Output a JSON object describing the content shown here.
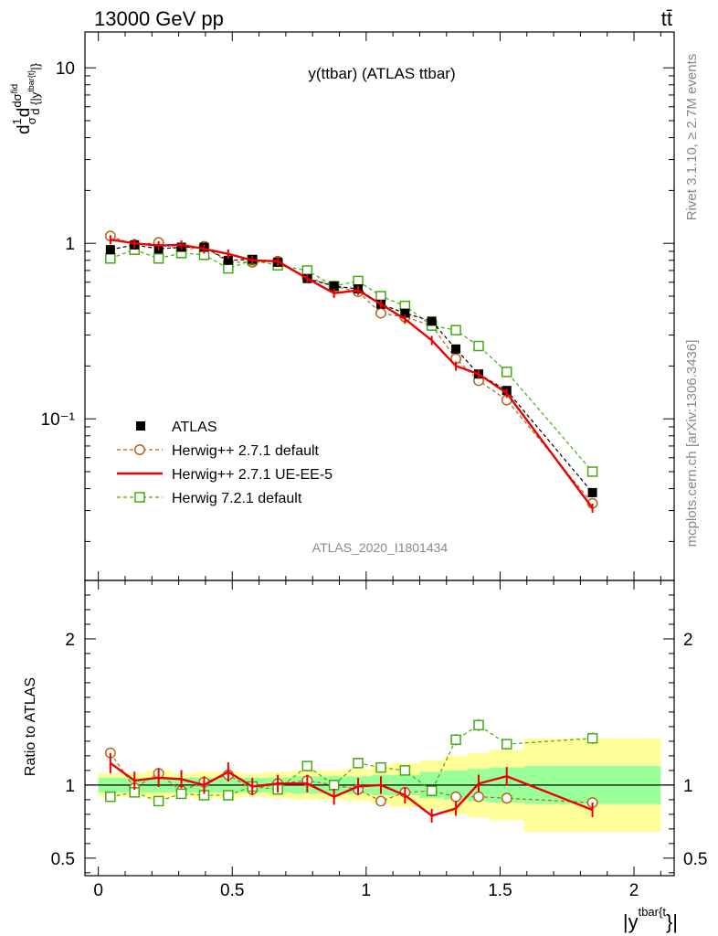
{
  "header": {
    "left": "13000 GeV pp",
    "right": "tt̄"
  },
  "side": {
    "rivet": "Rivet 3.1.10, ≥ 2.7M events",
    "mcplots": "mcplots.cern.ch [arXiv:1306.3436]"
  },
  "chart_data": [
    {
      "type": "scatter",
      "title": "y(ttbar) (ATLAS ttbar)",
      "watermark": "ATLAS_2020_I1801434",
      "ylabel": "dσ/d{|y^{tbar{t}}|} · 1/σ",
      "yscale": "log",
      "ylim": [
        0.012,
        16
      ],
      "xlim": [
        -0.05,
        2.15
      ],
      "y_ticks": [
        {
          "v": 10,
          "label": "10"
        },
        {
          "v": 1,
          "label": "1"
        },
        {
          "v": 0.1,
          "label": "10⁻¹"
        }
      ],
      "legend_position": "lower-left",
      "x": [
        0.045,
        0.135,
        0.225,
        0.31,
        0.395,
        0.485,
        0.575,
        0.67,
        0.78,
        0.88,
        0.97,
        1.055,
        1.145,
        1.245,
        1.335,
        1.42,
        1.525,
        1.845
      ],
      "series": [
        {
          "name": "ATLAS",
          "style": "data",
          "values": [
            0.92,
            0.98,
            0.93,
            0.95,
            0.95,
            0.8,
            0.81,
            0.78,
            0.63,
            0.57,
            0.55,
            0.45,
            0.4,
            0.36,
            0.25,
            0.18,
            0.145,
            0.038
          ]
        },
        {
          "name": "Herwig++ 2.7.1 default",
          "style": "circle",
          "color": "#b5651d",
          "values": [
            1.1,
            0.98,
            1.01,
            0.91,
            0.96,
            0.78,
            0.78,
            0.79,
            0.64,
            0.57,
            0.53,
            0.4,
            0.38,
            0.34,
            0.22,
            0.165,
            0.128,
            0.033
          ]
        },
        {
          "name": "Herwig++ 2.7.1 UE-EE-5",
          "style": "line",
          "color": "#ee0000",
          "values": [
            1.05,
            1.0,
            0.97,
            0.98,
            0.93,
            0.87,
            0.8,
            0.79,
            0.63,
            0.52,
            0.54,
            0.45,
            0.37,
            0.28,
            0.2,
            0.18,
            0.14,
            0.031
          ]
        },
        {
          "name": "Herwig 7.2.1 default",
          "style": "square",
          "color": "#44aa11",
          "values": [
            0.82,
            0.92,
            0.82,
            0.88,
            0.86,
            0.72,
            0.8,
            0.75,
            0.7,
            0.57,
            0.61,
            0.5,
            0.44,
            0.34,
            0.32,
            0.26,
            0.185,
            0.05
          ]
        }
      ]
    },
    {
      "type": "scatter",
      "ylabel": "Ratio to ATLAS",
      "xlabel": "|y^{tbar{t}}|",
      "ylim": [
        0.38,
        2.4
      ],
      "xlim": [
        -0.05,
        2.15
      ],
      "y_ticks": [
        {
          "v": 2,
          "label": "2"
        },
        {
          "v": 1,
          "label": "1"
        },
        {
          "v": 0.5,
          "label": "0.5"
        }
      ],
      "x_ticks": [
        {
          "v": 0,
          "label": "0"
        },
        {
          "v": 0.5,
          "label": "0.5"
        },
        {
          "v": 1,
          "label": "1"
        },
        {
          "v": 1.5,
          "label": "1.5"
        },
        {
          "v": 2,
          "label": "2"
        }
      ],
      "bin_edges": [
        0,
        0.09,
        0.18,
        0.27,
        0.355,
        0.44,
        0.53,
        0.62,
        0.72,
        0.84,
        0.92,
        1.02,
        1.09,
        1.2,
        1.29,
        1.38,
        1.46,
        1.59,
        2.1
      ],
      "band_stat": [
        0.05,
        0.05,
        0.05,
        0.05,
        0.05,
        0.05,
        0.05,
        0.05,
        0.06,
        0.06,
        0.06,
        0.07,
        0.07,
        0.09,
        0.1,
        0.11,
        0.12,
        0.13
      ],
      "band_total": [
        0.08,
        0.08,
        0.1,
        0.08,
        0.09,
        0.09,
        0.08,
        0.09,
        0.1,
        0.1,
        0.11,
        0.13,
        0.15,
        0.17,
        0.2,
        0.22,
        0.24,
        0.32
      ],
      "x": [
        0.045,
        0.135,
        0.225,
        0.31,
        0.395,
        0.485,
        0.575,
        0.67,
        0.78,
        0.88,
        0.97,
        1.055,
        1.145,
        1.245,
        1.335,
        1.42,
        1.525,
        1.845
      ],
      "series": [
        {
          "name": "Herwig++ 2.7.1 default",
          "style": "circle",
          "color": "#b5651d",
          "values": [
            1.22,
            0.98,
            1.08,
            0.96,
            1.02,
            1.07,
            0.97,
            1.01,
            1.03,
            1.0,
            0.97,
            0.89,
            0.95,
            0.96,
            0.92,
            0.92,
            0.91,
            0.88
          ]
        },
        {
          "name": "Herwig++ 2.7.1 UE-EE-5",
          "style": "line",
          "color": "#ee0000",
          "values": [
            1.15,
            1.03,
            1.05,
            1.04,
            1.0,
            1.09,
            0.99,
            1.01,
            1.01,
            0.92,
            0.99,
            1.0,
            0.93,
            0.79,
            0.84,
            1.01,
            1.06,
            0.83
          ]
        },
        {
          "name": "Herwig 7.2.1 default",
          "style": "square",
          "color": "#44aa11",
          "values": [
            0.92,
            0.95,
            0.89,
            0.94,
            0.93,
            0.93,
            0.99,
            0.97,
            1.13,
            1.0,
            1.15,
            1.12,
            1.1,
            0.96,
            1.31,
            1.41,
            1.28,
            1.32
          ]
        }
      ]
    }
  ]
}
